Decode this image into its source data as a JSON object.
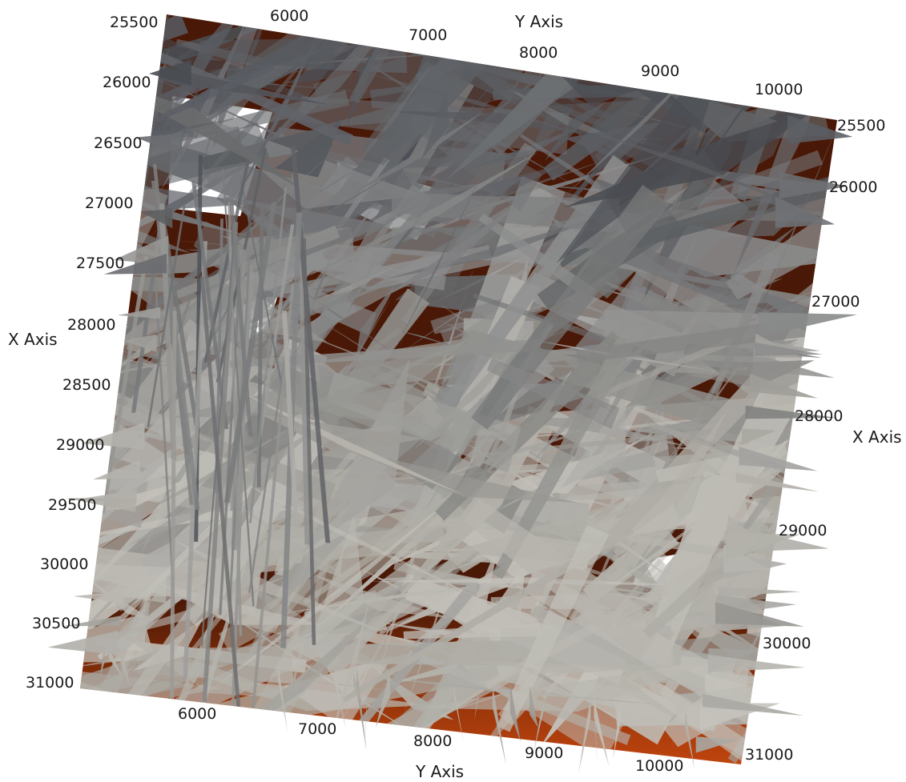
{
  "axes": {
    "y_axis_title": "Y Axis",
    "x_axis_title": "X Axis",
    "top_y_ticks": [
      "6000",
      "7000",
      "8000",
      "9000",
      "10000"
    ],
    "bottom_y_ticks": [
      "6000",
      "7000",
      "8000",
      "9000",
      "10000"
    ],
    "left_x_ticks": [
      "25500",
      "26000",
      "26500",
      "27000",
      "27500",
      "28000",
      "28500",
      "29000",
      "29500",
      "30000",
      "30500",
      "31000"
    ],
    "right_x_ticks": [
      "25500",
      "26000",
      "27000",
      "28000",
      "29000",
      "30000",
      "31000"
    ]
  },
  "colors": {
    "background": "#ffffff",
    "ground_dark": "#4a1806",
    "ground_light": "#b2400f",
    "fracture_dark": "#54575d",
    "fracture_light": "#b9b7b0"
  }
}
